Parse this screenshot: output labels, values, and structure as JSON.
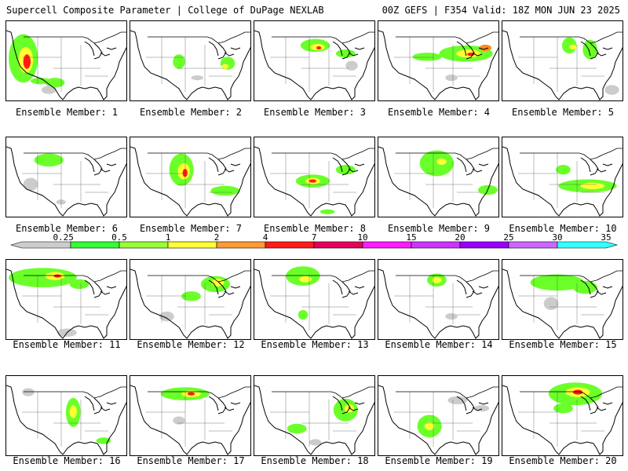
{
  "header": {
    "title": "Supercell Composite Parameter | College of DuPage NEXLAB",
    "run_info": "00Z GEFS | F354 Valid: 18Z MON JUN 23 2025"
  },
  "member_caption_prefix": "Ensemble Member: ",
  "members": [
    {
      "number": "1",
      "blobs": [
        [
          14,
          46,
          12,
          30,
          "#6bff2a"
        ],
        [
          16,
          48,
          6,
          16,
          "#ffff33"
        ],
        [
          17,
          50,
          3,
          9,
          "#ff1a1a"
        ],
        [
          28,
          74,
          8,
          4,
          "#6bff2a"
        ],
        [
          40,
          76,
          8,
          6,
          "#6bff2a"
        ],
        [
          35,
          85,
          6,
          5,
          "#cccccc"
        ]
      ]
    },
    {
      "number": "2",
      "blobs": [
        [
          40,
          50,
          5,
          9,
          "#6bff2a"
        ],
        [
          80,
          52,
          6,
          8,
          "#6bff2a"
        ],
        [
          78,
          56,
          3,
          3,
          "#ffff33"
        ],
        [
          55,
          70,
          5,
          3,
          "#cccccc"
        ]
      ]
    },
    {
      "number": "3",
      "blobs": [
        [
          50,
          30,
          12,
          8,
          "#6bff2a"
        ],
        [
          52,
          32,
          6,
          4,
          "#ffff33"
        ],
        [
          53,
          33,
          2,
          2,
          "#ff1a1a"
        ],
        [
          75,
          40,
          8,
          5,
          "#6bff2a"
        ],
        [
          80,
          55,
          5,
          6,
          "#cccccc"
        ]
      ]
    },
    {
      "number": "4",
      "blobs": [
        [
          72,
          40,
          22,
          10,
          "#6bff2a"
        ],
        [
          74,
          40,
          10,
          5,
          "#ffff33"
        ],
        [
          76,
          41,
          3,
          2,
          "#ff1a1a"
        ],
        [
          40,
          44,
          12,
          5,
          "#6bff2a"
        ],
        [
          88,
          33,
          5,
          4,
          "#ff8c1a"
        ],
        [
          60,
          70,
          5,
          4,
          "#cccccc"
        ]
      ]
    },
    {
      "number": "5",
      "blobs": [
        [
          55,
          30,
          6,
          10,
          "#6bff2a"
        ],
        [
          72,
          35,
          6,
          12,
          "#6bff2a"
        ],
        [
          58,
          32,
          3,
          3,
          "#ffff33"
        ],
        [
          90,
          85,
          6,
          6,
          "#cccccc"
        ]
      ]
    },
    {
      "number": "6",
      "blobs": [
        [
          35,
          28,
          12,
          8,
          "#6bff2a"
        ],
        [
          20,
          58,
          6,
          8,
          "#cccccc"
        ],
        [
          45,
          80,
          4,
          3,
          "#cccccc"
        ]
      ]
    },
    {
      "number": "7",
      "blobs": [
        [
          42,
          40,
          10,
          20,
          "#6bff2a"
        ],
        [
          44,
          42,
          5,
          10,
          "#ffff33"
        ],
        [
          45,
          44,
          2,
          5,
          "#ff1a1a"
        ],
        [
          78,
          66,
          12,
          6,
          "#6bff2a"
        ]
      ]
    },
    {
      "number": "8",
      "blobs": [
        [
          48,
          54,
          14,
          8,
          "#6bff2a"
        ],
        [
          48,
          54,
          6,
          4,
          "#ffff33"
        ],
        [
          48,
          54,
          3,
          2,
          "#ff1a1a"
        ],
        [
          75,
          40,
          8,
          6,
          "#6bff2a"
        ],
        [
          60,
          92,
          6,
          3,
          "#6bff2a"
        ]
      ]
    },
    {
      "number": "9",
      "blobs": [
        [
          48,
          32,
          14,
          16,
          "#6bff2a"
        ],
        [
          52,
          30,
          4,
          4,
          "#ffff33"
        ],
        [
          90,
          65,
          8,
          6,
          "#6bff2a"
        ]
      ]
    },
    {
      "number": "10",
      "blobs": [
        [
          70,
          60,
          24,
          8,
          "#6bff2a"
        ],
        [
          74,
          60,
          10,
          4,
          "#ffff33"
        ],
        [
          50,
          40,
          6,
          6,
          "#6bff2a"
        ]
      ]
    },
    {
      "number": "11",
      "blobs": [
        [
          30,
          22,
          28,
          12,
          "#6bff2a"
        ],
        [
          40,
          20,
          8,
          5,
          "#ffff33"
        ],
        [
          42,
          20,
          3,
          2,
          "#ff1a1a"
        ],
        [
          60,
          30,
          8,
          6,
          "#6bff2a"
        ],
        [
          50,
          90,
          8,
          5,
          "#cccccc"
        ]
      ]
    },
    {
      "number": "12",
      "blobs": [
        [
          70,
          30,
          12,
          10,
          "#6bff2a"
        ],
        [
          72,
          28,
          5,
          5,
          "#ffff33"
        ],
        [
          50,
          45,
          8,
          6,
          "#6bff2a"
        ],
        [
          30,
          70,
          6,
          6,
          "#cccccc"
        ]
      ]
    },
    {
      "number": "13",
      "blobs": [
        [
          40,
          20,
          14,
          12,
          "#6bff2a"
        ],
        [
          42,
          24,
          5,
          4,
          "#ffff33"
        ],
        [
          40,
          68,
          4,
          6,
          "#6bff2a"
        ]
      ]
    },
    {
      "number": "14",
      "blobs": [
        [
          48,
          25,
          8,
          8,
          "#6bff2a"
        ],
        [
          48,
          25,
          4,
          4,
          "#ffff33"
        ],
        [
          60,
          70,
          5,
          4,
          "#cccccc"
        ]
      ]
    },
    {
      "number": "15",
      "blobs": [
        [
          45,
          28,
          22,
          10,
          "#6bff2a"
        ],
        [
          68,
          34,
          10,
          8,
          "#6bff2a"
        ],
        [
          40,
          54,
          6,
          8,
          "#cccccc"
        ]
      ]
    },
    {
      "number": "16",
      "blobs": [
        [
          55,
          45,
          6,
          18,
          "#6bff2a"
        ],
        [
          55,
          44,
          3,
          8,
          "#ffff33"
        ],
        [
          18,
          20,
          5,
          5,
          "#cccccc"
        ],
        [
          80,
          80,
          6,
          4,
          "#6bff2a"
        ]
      ]
    },
    {
      "number": "17",
      "blobs": [
        [
          45,
          22,
          20,
          8,
          "#6bff2a"
        ],
        [
          50,
          22,
          8,
          4,
          "#ffff33"
        ],
        [
          50,
          22,
          3,
          2,
          "#ff1a1a"
        ],
        [
          40,
          55,
          5,
          5,
          "#cccccc"
        ]
      ]
    },
    {
      "number": "18",
      "blobs": [
        [
          75,
          42,
          10,
          14,
          "#6bff2a"
        ],
        [
          78,
          40,
          4,
          5,
          "#ffff33"
        ],
        [
          35,
          65,
          8,
          6,
          "#6bff2a"
        ],
        [
          50,
          82,
          5,
          4,
          "#cccccc"
        ]
      ]
    },
    {
      "number": "19",
      "blobs": [
        [
          42,
          62,
          10,
          14,
          "#6bff2a"
        ],
        [
          42,
          62,
          4,
          5,
          "#ffff33"
        ],
        [
          65,
          30,
          8,
          5,
          "#cccccc"
        ],
        [
          85,
          40,
          6,
          4,
          "#cccccc"
        ]
      ]
    },
    {
      "number": "20",
      "blobs": [
        [
          60,
          22,
          22,
          14,
          "#6bff2a"
        ],
        [
          62,
          20,
          10,
          6,
          "#ffff33"
        ],
        [
          62,
          20,
          4,
          3,
          "#ff1a1a"
        ],
        [
          50,
          40,
          8,
          6,
          "#6bff2a"
        ]
      ]
    }
  ],
  "colorbar": {
    "labels": [
      "0.25",
      "0.5",
      "1",
      "2",
      "4",
      "7",
      "10",
      "15",
      "20",
      "25",
      "30",
      "35"
    ],
    "colors": [
      "#cccccc",
      "#33ff33",
      "#99ff33",
      "#ffff33",
      "#ff9933",
      "#ff1a1a",
      "#e6005c",
      "#ff1aff",
      "#cc33ff",
      "#9900ff",
      "#cc66ff",
      "#33ffff"
    ]
  },
  "map_colors": {
    "land_line": "#000000",
    "border_line": "#000000"
  }
}
